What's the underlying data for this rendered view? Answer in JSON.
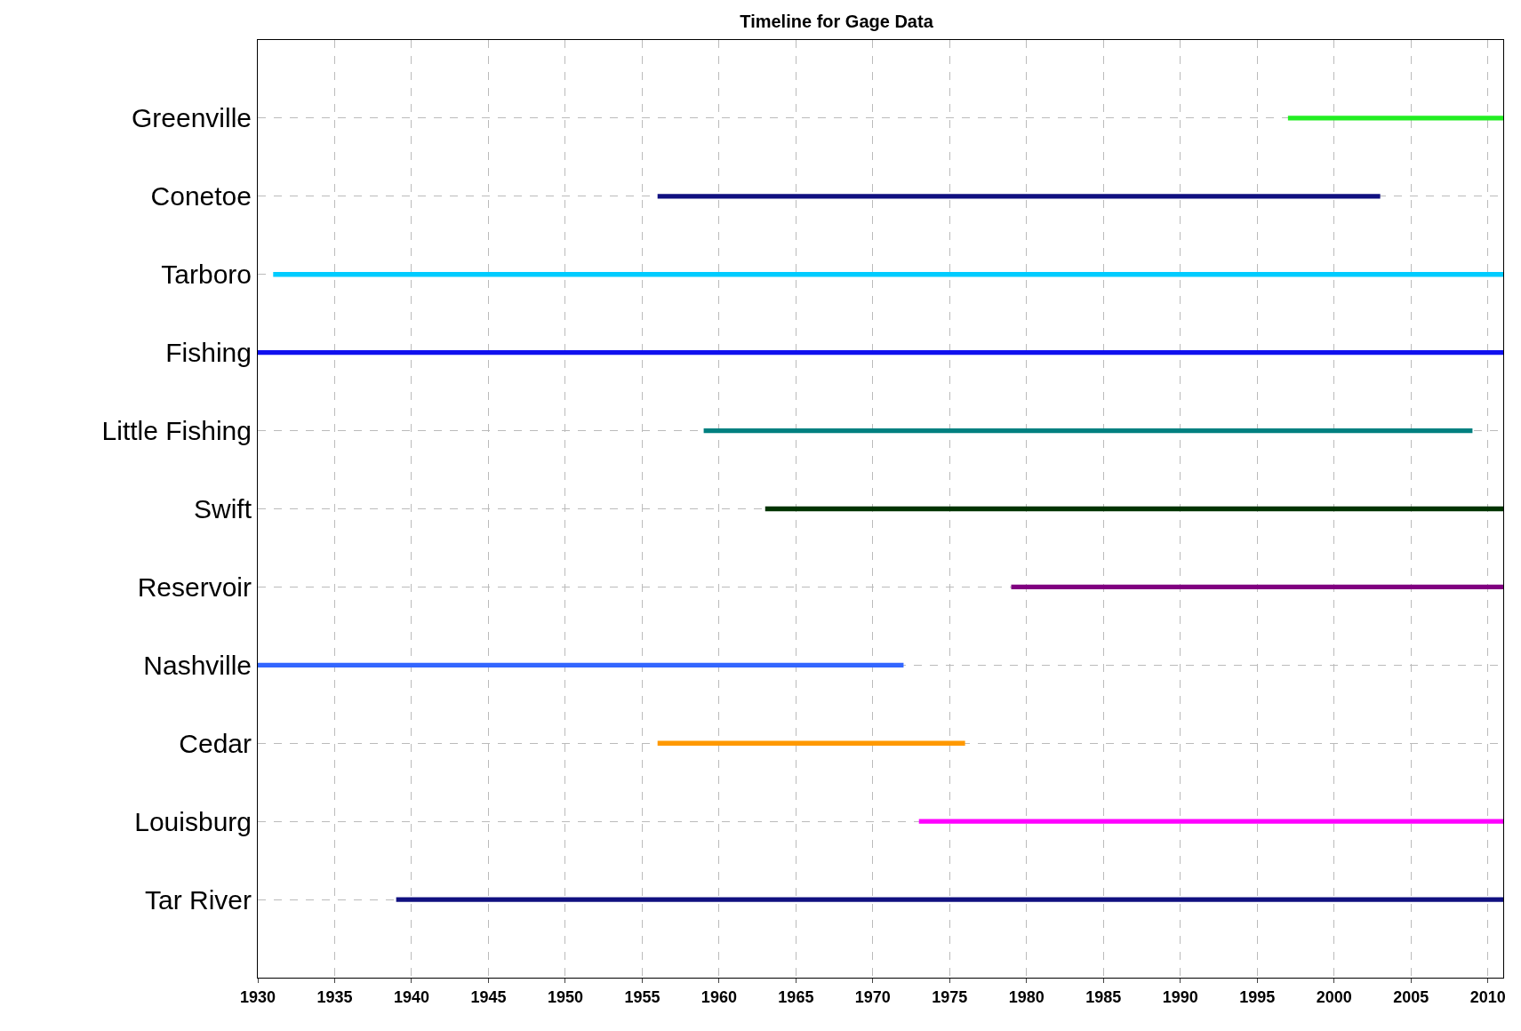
{
  "chart_data": {
    "type": "bar",
    "orientation": "horizontal",
    "title": "Timeline for Gage Data",
    "categories": [
      "Greenville",
      "Conetoe",
      "Tarboro",
      "Fishing",
      "Little Fishing",
      "Swift",
      "Reservoir",
      "Nashville",
      "Cedar",
      "Louisburg",
      "Tar River"
    ],
    "base": [
      1997,
      1956,
      1931,
      1930,
      1959,
      1963,
      1979,
      1930,
      1956,
      1973,
      1939
    ],
    "values": [
      14,
      47,
      80,
      81,
      50,
      48,
      32,
      42,
      20,
      38,
      72
    ],
    "colors": [
      "#22ee22",
      "#101080",
      "#00ccff",
      "#1010ee",
      "#008080",
      "#003300",
      "#800080",
      "#3366ff",
      "#ff9900",
      "#ff00ff",
      "#101080"
    ],
    "xlim": [
      1930,
      2011
    ],
    "xticks": [
      1930,
      1935,
      1940,
      1945,
      1950,
      1955,
      1960,
      1965,
      1970,
      1975,
      1980,
      1985,
      1990,
      1995,
      2000,
      2005,
      2010
    ],
    "grid": true
  }
}
